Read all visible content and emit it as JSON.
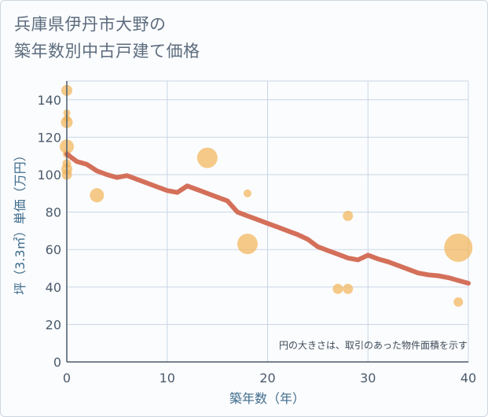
{
  "chart_data": {
    "type": "scatter",
    "title_lines": [
      "兵庫県伊丹市大野の",
      "築年数別中古戸建て価格"
    ],
    "xlabel": "築年数（年）",
    "ylabel": "坪（3.3㎡）単価（万円）",
    "xlim": [
      0,
      40
    ],
    "ylim": [
      0,
      150
    ],
    "x_ticks": [
      0,
      10,
      20,
      30,
      40
    ],
    "y_ticks": [
      0,
      20,
      40,
      60,
      80,
      100,
      120,
      140
    ],
    "note": "円の大きさは、取引のあった物件面積を示す",
    "trend_color": "#d4705a",
    "bubble_color": "#f3b55a",
    "trend_line": {
      "x": [
        0,
        1,
        2,
        3,
        4,
        5,
        6,
        7,
        8,
        9,
        10,
        11,
        12,
        13,
        14,
        15,
        16,
        17,
        18,
        19,
        20,
        21,
        22,
        23,
        24,
        25,
        26,
        27,
        28,
        29,
        30,
        31,
        32,
        33,
        34,
        35,
        36,
        37,
        38,
        39,
        40
      ],
      "y": [
        111,
        107,
        105.5,
        102,
        100,
        98.5,
        99.5,
        97.5,
        95.5,
        93.5,
        91.5,
        90.5,
        94,
        92,
        90,
        88,
        86,
        80,
        78,
        76,
        74,
        72,
        70,
        68,
        65.5,
        61.5,
        59.5,
        57.5,
        55.5,
        54.5,
        57,
        55,
        53.5,
        51.5,
        49.5,
        47.5,
        46.5,
        46,
        45,
        43.5,
        42
      ]
    },
    "bubbles": [
      {
        "x": 0,
        "y": 145,
        "size": 10
      },
      {
        "x": 0,
        "y": 133,
        "size": 5
      },
      {
        "x": 0,
        "y": 130,
        "size": 5
      },
      {
        "x": 0,
        "y": 128,
        "size": 11
      },
      {
        "x": 0,
        "y": 115,
        "size": 14
      },
      {
        "x": 0,
        "y": 111,
        "size": 6
      },
      {
        "x": 0,
        "y": 106,
        "size": 7
      },
      {
        "x": 0,
        "y": 103,
        "size": 10
      },
      {
        "x": 0,
        "y": 100,
        "size": 9
      },
      {
        "x": 3,
        "y": 89,
        "size": 14
      },
      {
        "x": 14,
        "y": 109,
        "size": 22
      },
      {
        "x": 18,
        "y": 90,
        "size": 6
      },
      {
        "x": 18,
        "y": 63,
        "size": 22
      },
      {
        "x": 27,
        "y": 39,
        "size": 9
      },
      {
        "x": 28,
        "y": 39,
        "size": 9
      },
      {
        "x": 28,
        "y": 78,
        "size": 9
      },
      {
        "x": 39,
        "y": 61,
        "size": 32
      },
      {
        "x": 39,
        "y": 32,
        "size": 8
      }
    ]
  }
}
